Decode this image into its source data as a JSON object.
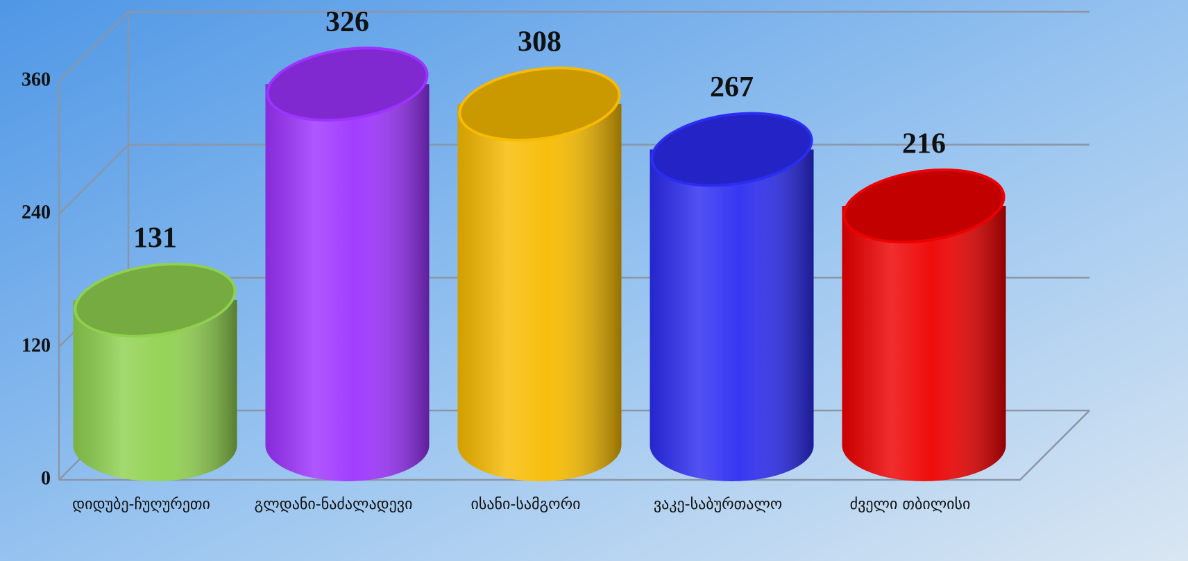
{
  "chart_data": {
    "type": "bar",
    "categories": [
      "დიდუბე-ჩუღურეთი",
      "გლდანი-ნაძალადევი",
      "ისანი-სამგორი",
      "ვაკე-საბურთალო",
      "ძველი თბილისი"
    ],
    "values": [
      131,
      326,
      308,
      267,
      216
    ],
    "colors": [
      "#8fd14f",
      "#9d33ff",
      "#f7bb00",
      "#2c2cf2",
      "#ee0000"
    ],
    "ylim": [
      0,
      360
    ],
    "yticks": [
      0,
      120,
      240,
      360
    ],
    "grid": true
  }
}
